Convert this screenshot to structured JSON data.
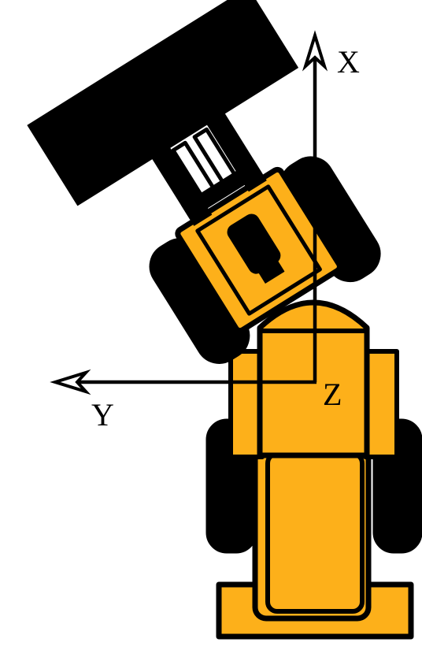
{
  "axes": {
    "x_label": "X",
    "y_label": "Y",
    "z_label": "Z"
  },
  "colors": {
    "body": "#FDB01A",
    "outline": "#000000",
    "background": "#FFFFFF"
  }
}
